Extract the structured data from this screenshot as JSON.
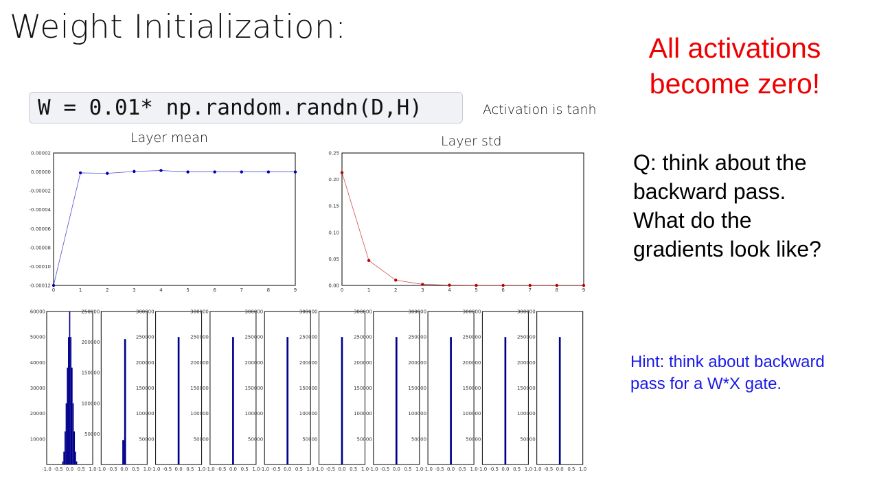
{
  "slide": {
    "title": "Weight Initialization:",
    "code": "W = 0.01* np.random.randn(D,H)",
    "activation_note": "Activation is tanh",
    "callout_red": [
      "All activations",
      "become zero!"
    ],
    "question": [
      "Q: think about the",
      "backward pass.",
      "What do the",
      "gradients look like?"
    ],
    "hint": [
      "Hint: think about backward",
      "pass for a W*X gate."
    ],
    "colors": {
      "callout": "#ee0000",
      "hint": "#1a1ae6",
      "mean_line": "#0000bb",
      "std_line": "#bb0000",
      "hist_bar": "#00008b"
    }
  },
  "chart_data": [
    {
      "type": "line",
      "title": "Layer mean",
      "x": [
        0,
        1,
        2,
        3,
        4,
        5,
        6,
        7,
        8,
        9
      ],
      "values": [
        -0.00012,
        -1e-06,
        -1.5e-06,
        5e-07,
        1.5e-06,
        0.0,
        0.0,
        0.0,
        0.0,
        0.0
      ],
      "xlim": [
        0,
        9
      ],
      "ylim": [
        -0.00012,
        2e-05
      ],
      "xticks": [
        "0",
        "1",
        "2",
        "3",
        "4",
        "5",
        "6",
        "7",
        "8",
        "9"
      ],
      "yticks": [
        "0.00002",
        "0.00000",
        "-0.00002",
        "-0.00004",
        "-0.00006",
        "-0.00008",
        "-0.00010",
        "-0.00012"
      ],
      "ytick_values": [
        2e-05,
        0.0,
        -2e-05,
        -4e-05,
        -6e-05,
        -8e-05,
        -0.0001,
        -0.00012
      ]
    },
    {
      "type": "line",
      "title": "Layer std",
      "x": [
        0,
        1,
        2,
        3,
        4,
        5,
        6,
        7,
        8,
        9
      ],
      "values": [
        0.213,
        0.047,
        0.01,
        0.002,
        0.0005,
        0.0001,
        0.0,
        0.0,
        0.0,
        0.0
      ],
      "xlim": [
        0,
        9
      ],
      "ylim": [
        0,
        0.25
      ],
      "xticks": [
        "0",
        "1",
        "2",
        "3",
        "4",
        "5",
        "6",
        "7",
        "8",
        "9"
      ],
      "yticks": [
        "0.25",
        "0.20",
        "0.15",
        "0.10",
        "0.05",
        "0.00"
      ],
      "ytick_values": [
        0.25,
        0.2,
        0.15,
        0.1,
        0.05,
        0.0
      ]
    },
    {
      "type": "bar",
      "title": "",
      "panels": 10,
      "xlim": [
        -1,
        1
      ],
      "xticks": [
        "-1.0",
        "-0.5",
        "0.0",
        "0.5",
        "1.0"
      ],
      "first_panel": {
        "ylim": [
          0,
          60000
        ],
        "yticks": [
          "60000",
          "50000",
          "40000",
          "30000",
          "20000",
          "10000"
        ],
        "ytick_values": [
          60000,
          50000,
          40000,
          30000,
          20000,
          10000
        ],
        "bins": [
          -0.3,
          -0.25,
          -0.2,
          -0.15,
          -0.1,
          -0.05,
          0.0,
          0.05,
          0.1,
          0.15,
          0.2,
          0.25,
          0.3
        ],
        "counts": [
          1200,
          5000,
          13000,
          24000,
          38000,
          50000,
          60000,
          50000,
          38000,
          24000,
          13000,
          5000,
          1200
        ]
      },
      "second_panel": {
        "ylim": [
          0,
          250000
        ],
        "yticks": [
          "250000",
          "200000",
          "150000",
          "100000",
          "50000"
        ],
        "ytick_values": [
          250000,
          200000,
          150000,
          100000,
          50000
        ],
        "bars": [
          {
            "x0": -0.08,
            "x1": 0.0,
            "count": 40000
          },
          {
            "x0": 0.0,
            "x1": 0.08,
            "count": 205000
          }
        ]
      },
      "other_panels": {
        "ylim": [
          0,
          300000
        ],
        "yticks": [
          "300000",
          "250000",
          "200000",
          "150000",
          "100000",
          "50000"
        ],
        "ytick_values": [
          300000,
          250000,
          200000,
          150000,
          100000,
          50000
        ],
        "bar": {
          "x0": -0.04,
          "x1": 0.04,
          "count": 250000
        }
      }
    }
  ]
}
